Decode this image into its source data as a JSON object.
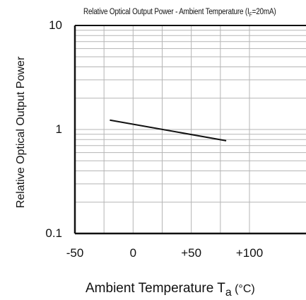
{
  "chart_data": {
    "type": "line",
    "title_main": "Relative Optical Output Power - Ambient Temperature  (I",
    "title_sub": "F",
    "title_tail": "=20mA)",
    "ylabel": "Relative Optical Output Power",
    "xlabel_main": "Ambient Temperature  T",
    "xlabel_sub": "a",
    "xlabel_unit": " (°C)",
    "x_scale": "linear",
    "y_scale": "log",
    "xlim": [
      -50,
      110
    ],
    "ylim": [
      0.1,
      10
    ],
    "x_ticks": [
      -50,
      0,
      50,
      100
    ],
    "x_tick_labels": [
      "-50",
      "0",
      "+50",
      "+100"
    ],
    "y_ticks": [
      0.1,
      1,
      10
    ],
    "y_tick_labels": [
      "0.1",
      "1",
      "10"
    ],
    "grid": true,
    "series": [
      {
        "x": [
          -20,
          80
        ],
        "y": [
          1.23,
          0.78
        ]
      }
    ],
    "colors": {
      "line": "#111111",
      "grid": "#b5b5b5",
      "axis": "#111111"
    }
  }
}
